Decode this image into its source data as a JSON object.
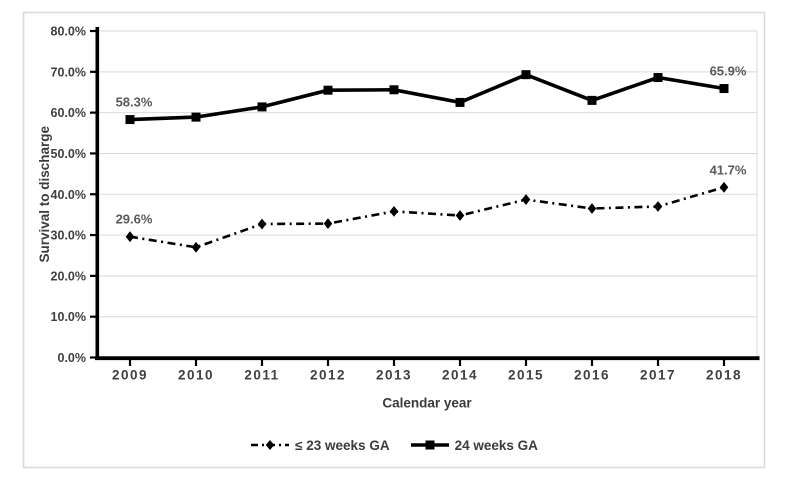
{
  "chart_data": {
    "type": "line",
    "title": "",
    "xlabel": "Calendar year",
    "ylabel": "Survival to discharge",
    "categories": [
      "2009",
      "2010",
      "2011",
      "2012",
      "2013",
      "2014",
      "2015",
      "2016",
      "2017",
      "2018"
    ],
    "ylim": [
      0,
      80
    ],
    "ytick_step": 10,
    "ytick_labels": [
      "0.0%",
      "10.0%",
      "20.0%",
      "30.0%",
      "40.0%",
      "50.0%",
      "60.0%",
      "70.0%",
      "80.0%"
    ],
    "grid": "horizontal",
    "legend_position": "bottom-center",
    "series": [
      {
        "name": "≤ 23 weeks GA",
        "marker": "diamond",
        "line_style": "dash-dot",
        "color": "#000000",
        "values": [
          29.6,
          27.0,
          32.7,
          32.8,
          35.8,
          34.8,
          38.7,
          36.5,
          37.0,
          41.7
        ],
        "annotations": [
          {
            "index": 0,
            "text": "29.6%"
          },
          {
            "index": 9,
            "text": "41.7%"
          }
        ]
      },
      {
        "name": "24 weeks GA",
        "marker": "square",
        "line_style": "solid",
        "color": "#000000",
        "values": [
          58.3,
          58.9,
          61.4,
          65.5,
          65.6,
          62.5,
          69.3,
          63.0,
          68.6,
          65.9
        ],
        "annotations": [
          {
            "index": 0,
            "text": "58.3%"
          },
          {
            "index": 9,
            "text": "65.9%"
          }
        ]
      }
    ],
    "colors": {
      "axis": "#000000",
      "grid": "#d9d9d9",
      "frame_border": "#d9d9d9",
      "tick_label": "#404040",
      "axis_title": "#3b3b3b",
      "data_label": "#595959",
      "background": "#ffffff"
    }
  }
}
